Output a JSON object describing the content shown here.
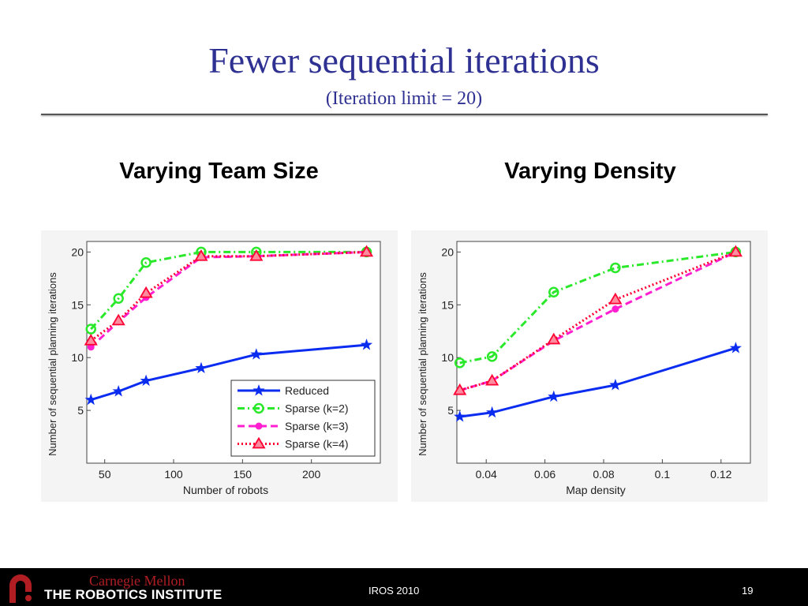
{
  "slide": {
    "title": "Fewer sequential iterations",
    "subtitle": "(Iteration limit = 20)"
  },
  "panels": [
    {
      "heading": "Varying Team Size"
    },
    {
      "heading": "Varying Density"
    }
  ],
  "footer": {
    "university": "Carnegie Mellon",
    "institute": "THE ROBOTICS INSTITUTE",
    "event": "IROS 2010",
    "page": "19"
  },
  "colors": {
    "title": "#2e3192",
    "reduced": "#0a2cf0",
    "sparse_k2": "#2ae82a",
    "sparse_k3": "#ff1fd1",
    "sparse_k4": "#ff0033",
    "logo_red": "#b01e23"
  },
  "chart_data": [
    {
      "type": "line",
      "xlabel": "Number of robots",
      "ylabel": "Number of sequential planning iterations",
      "xlim": [
        37,
        250
      ],
      "ylim": [
        0,
        21
      ],
      "xticks": [
        50,
        100,
        150,
        200
      ],
      "yticks": [
        5,
        10,
        15,
        20
      ],
      "grid": false,
      "legend": "bottom-right",
      "series": [
        {
          "name": "Reduced",
          "style": "solid",
          "marker": "star",
          "color": "#0a2cf0",
          "x": [
            40,
            60,
            80,
            120,
            160,
            240
          ],
          "y": [
            6,
            6.8,
            7.8,
            9,
            10.3,
            11.2
          ]
        },
        {
          "name": "Sparse (k=2)",
          "style": "dashdot",
          "marker": "circle",
          "color": "#2ae82a",
          "x": [
            40,
            60,
            80,
            120,
            160,
            240
          ],
          "y": [
            12.7,
            15.6,
            19,
            20,
            20,
            20
          ]
        },
        {
          "name": "Sparse (k=3)",
          "style": "dashed",
          "marker": "dot",
          "color": "#ff1fd1",
          "x": [
            40,
            60,
            80,
            120,
            160,
            240
          ],
          "y": [
            11,
            13.4,
            15.7,
            19.5,
            19.6,
            20
          ]
        },
        {
          "name": "Sparse (k=4)",
          "style": "dotted",
          "marker": "triangle",
          "color": "#ff0033",
          "x": [
            40,
            60,
            80,
            120,
            160,
            240
          ],
          "y": [
            11.6,
            13.5,
            16.1,
            19.6,
            19.6,
            20
          ]
        }
      ]
    },
    {
      "type": "line",
      "xlabel": "Map density",
      "ylabel": "Number of sequential planning iterations",
      "xlim": [
        0.03,
        0.13
      ],
      "ylim": [
        0,
        21
      ],
      "xticks": [
        0.04,
        0.06,
        0.08,
        0.1,
        0.12
      ],
      "yticks": [
        5,
        10,
        15,
        20
      ],
      "grid": false,
      "legend": "none",
      "series": [
        {
          "name": "Reduced",
          "style": "solid",
          "marker": "star",
          "color": "#0a2cf0",
          "x": [
            0.031,
            0.042,
            0.063,
            0.084,
            0.125
          ],
          "y": [
            4.4,
            4.8,
            6.3,
            7.4,
            10.9
          ]
        },
        {
          "name": "Sparse (k=2)",
          "style": "dashdot",
          "marker": "circle",
          "color": "#2ae82a",
          "x": [
            0.031,
            0.042,
            0.063,
            0.084,
            0.125
          ],
          "y": [
            9.5,
            10.1,
            16.2,
            18.5,
            20
          ]
        },
        {
          "name": "Sparse (k=3)",
          "style": "dashed",
          "marker": "dot",
          "color": "#ff1fd1",
          "x": [
            0.031,
            0.042,
            0.063,
            0.084,
            0.125
          ],
          "y": [
            6.9,
            7.8,
            11.6,
            14.6,
            20
          ]
        },
        {
          "name": "Sparse (k=4)",
          "style": "dotted",
          "marker": "triangle",
          "color": "#ff0033",
          "x": [
            0.031,
            0.042,
            0.063,
            0.084,
            0.125
          ],
          "y": [
            6.9,
            7.8,
            11.7,
            15.5,
            20
          ]
        }
      ]
    }
  ]
}
